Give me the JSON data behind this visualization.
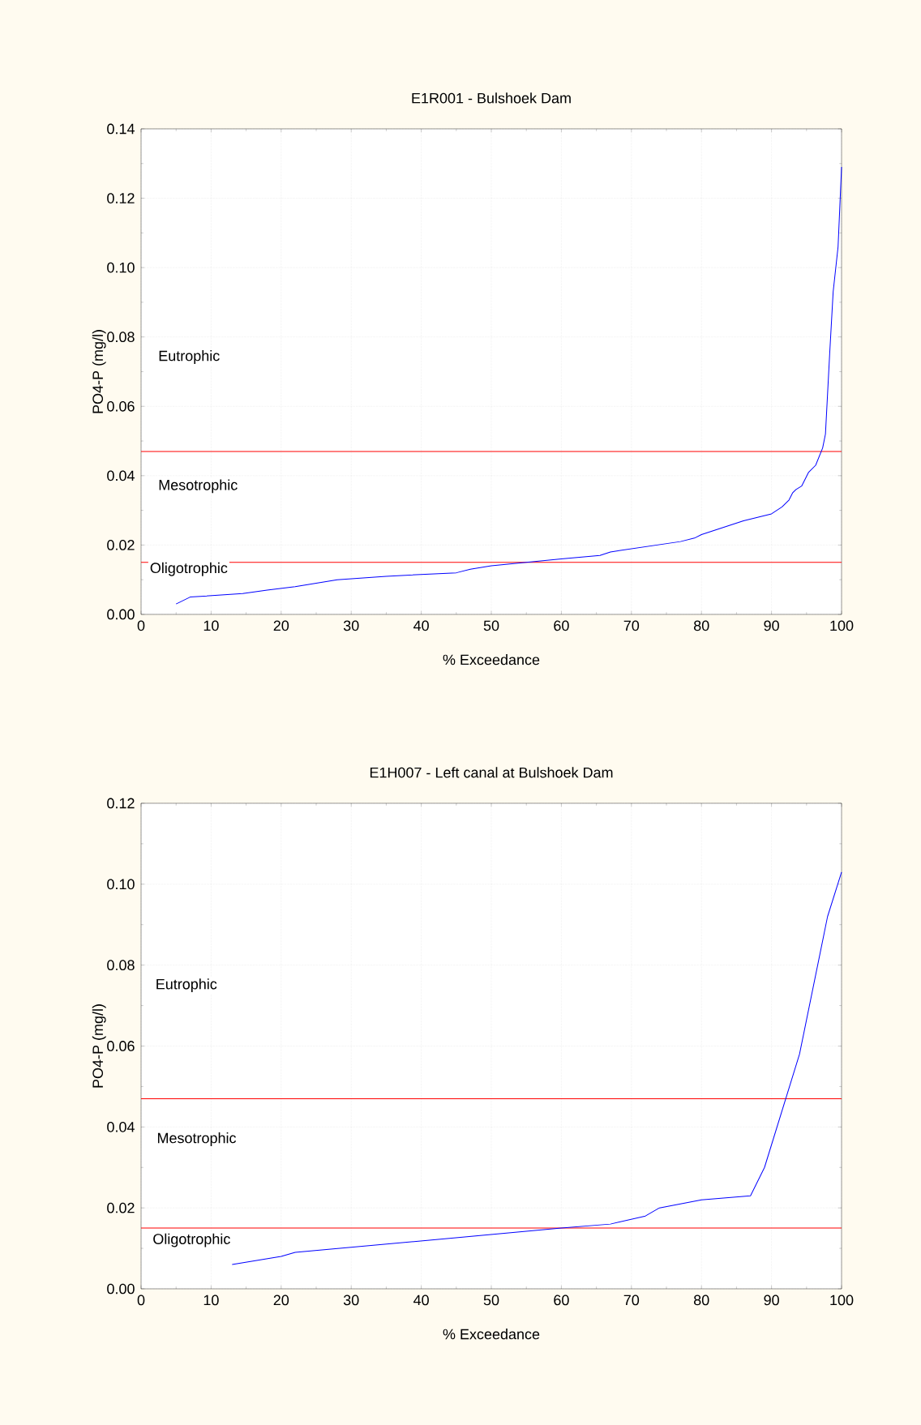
{
  "chart_data": [
    {
      "type": "line",
      "title": "E1R001 - Bulshoek Dam",
      "xlabel": "% Exceedance",
      "ylabel": "PO4-P (mg/l)",
      "x": [
        5,
        7,
        14.5,
        18,
        22,
        25,
        28,
        35,
        45,
        47,
        50,
        55,
        60,
        65.5,
        67,
        77,
        79,
        80,
        86,
        88,
        90,
        91.5,
        92.5,
        93,
        93.5,
        94.3,
        95.3,
        96.3,
        97.3,
        97.7,
        98.3,
        98.8,
        99.5,
        100
      ],
      "series": [
        {
          "color": "#0000ff",
          "values": [
            0.003,
            0.005,
            0.006,
            0.007,
            0.008,
            0.009,
            0.01,
            0.011,
            0.012,
            0.013,
            0.014,
            0.015,
            0.016,
            0.017,
            0.018,
            0.021,
            0.022,
            0.023,
            0.027,
            0.028,
            0.029,
            0.031,
            0.033,
            0.035,
            0.036,
            0.037,
            0.041,
            0.043,
            0.048,
            0.052,
            0.075,
            0.093,
            0.106,
            0.129
          ]
        }
      ],
      "xlim": [
        0,
        100
      ],
      "ylim": [
        0,
        0.14
      ],
      "xticks": [
        0,
        10,
        20,
        30,
        40,
        50,
        60,
        70,
        80,
        90,
        100
      ],
      "yticks": [
        {
          "value": 0,
          "label": "0.00"
        },
        {
          "value": 0.02,
          "label": "0.02"
        },
        {
          "value": 0.04,
          "label": "0.04"
        },
        {
          "value": 0.06,
          "label": "0.06"
        },
        {
          "value": 0.08,
          "label": "0.08"
        },
        {
          "value": 0.1,
          "label": "0.10"
        },
        {
          "value": 0.12,
          "label": "0.12"
        },
        {
          "value": 0.14,
          "label": "0.14"
        }
      ],
      "grid": true,
      "ref_lines": [
        {
          "axis": "y",
          "value": 0.047,
          "color": "#ff0000"
        },
        {
          "axis": "y",
          "value": 0.015,
          "color": "#ff0000"
        }
      ],
      "annotations": [
        "Eutrophic",
        "Mesotrophic",
        "Oligotrophic"
      ]
    },
    {
      "type": "line",
      "title": "E1H007 - Left canal at Bulshoek Dam",
      "xlabel": "% Exceedance",
      "ylabel": "PO4-P (mg/l)",
      "x": [
        13,
        20,
        22,
        60,
        67,
        72,
        74,
        80,
        87,
        89,
        94,
        98,
        100
      ],
      "series": [
        {
          "color": "#0000ff",
          "values": [
            0.006,
            0.008,
            0.009,
            0.015,
            0.016,
            0.018,
            0.02,
            0.022,
            0.023,
            0.03,
            0.058,
            0.092,
            0.103
          ]
        }
      ],
      "xlim": [
        0,
        100
      ],
      "ylim": [
        0,
        0.12
      ],
      "xticks": [
        0,
        10,
        20,
        30,
        40,
        50,
        60,
        70,
        80,
        90,
        100
      ],
      "yticks": [
        {
          "value": 0,
          "label": "0.00"
        },
        {
          "value": 0.02,
          "label": "0.02"
        },
        {
          "value": 0.04,
          "label": "0.04"
        },
        {
          "value": 0.06,
          "label": "0.06"
        },
        {
          "value": 0.08,
          "label": "0.08"
        },
        {
          "value": 0.1,
          "label": "0.10"
        },
        {
          "value": 0.12,
          "label": "0.12"
        }
      ],
      "grid": true,
      "ref_lines": [
        {
          "axis": "y",
          "value": 0.047,
          "color": "#ff0000"
        },
        {
          "axis": "y",
          "value": 0.015,
          "color": "#ff0000"
        }
      ],
      "annotations": [
        "Eutrophic",
        "Mesotrophic",
        "Oligotrophic"
      ]
    }
  ]
}
